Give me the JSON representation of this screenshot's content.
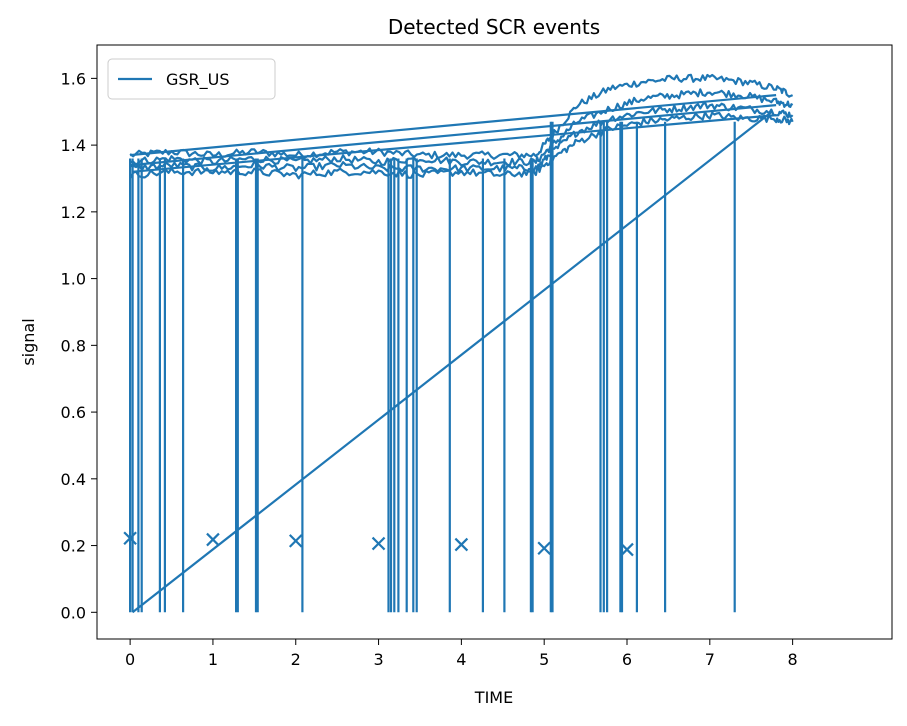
{
  "chart_data": {
    "type": "line",
    "title": "Detected SCR events",
    "xlabel": "TIME",
    "ylabel": "signal",
    "xlim": [
      -0.4,
      9.2
    ],
    "ylim": [
      -0.08,
      1.7
    ],
    "xticks": [
      0,
      1,
      2,
      3,
      4,
      5,
      6,
      7,
      8
    ],
    "yticks": [
      0.0,
      0.2,
      0.4,
      0.6,
      0.8,
      1.0,
      1.2,
      1.4,
      1.6
    ],
    "xtick_labels": [
      "0",
      "1",
      "2",
      "3",
      "4",
      "5",
      "6",
      "7",
      "8"
    ],
    "ytick_labels": [
      "0.0",
      "0.2",
      "0.4",
      "0.6",
      "0.8",
      "1.0",
      "1.2",
      "1.4",
      "1.6"
    ],
    "grid": false,
    "legend_position": "top-left",
    "legend": [
      "GSR_US"
    ],
    "series_color": "#1f77b4",
    "series": [
      {
        "name": "GSR_US",
        "segments": [
          {
            "x": [
              0,
              0.5,
              1,
              1.5,
              2,
              2.5,
              3,
              3.5,
              4,
              4.5,
              4.9,
              5.1,
              5.4,
              5.8,
              6.2,
              6.6,
              7.0,
              7.4,
              7.8,
              8.0
            ],
            "y": [
              1.37,
              1.38,
              1.37,
              1.38,
              1.37,
              1.38,
              1.38,
              1.37,
              1.37,
              1.37,
              1.37,
              1.43,
              1.52,
              1.57,
              1.59,
              1.6,
              1.6,
              1.59,
              1.57,
              1.55
            ]
          },
          {
            "x": [
              0,
              0.5,
              1,
              1.5,
              2,
              2.5,
              3,
              3.5,
              4,
              4.5,
              4.9,
              5.1,
              5.4,
              5.8,
              6.2,
              6.6,
              7.0,
              7.4,
              7.8,
              8.0
            ],
            "y": [
              1.35,
              1.36,
              1.35,
              1.36,
              1.35,
              1.36,
              1.35,
              1.36,
              1.35,
              1.35,
              1.35,
              1.4,
              1.47,
              1.51,
              1.54,
              1.55,
              1.56,
              1.55,
              1.53,
              1.52
            ]
          },
          {
            "x": [
              0,
              0.5,
              1,
              1.5,
              2,
              2.5,
              3,
              3.5,
              4,
              4.5,
              4.9,
              5.1,
              5.4,
              5.8,
              6.2,
              6.6,
              7.0,
              7.4,
              7.8,
              8.0
            ],
            "y": [
              1.33,
              1.34,
              1.33,
              1.34,
              1.33,
              1.34,
              1.33,
              1.33,
              1.33,
              1.33,
              1.33,
              1.38,
              1.44,
              1.48,
              1.5,
              1.51,
              1.52,
              1.51,
              1.5,
              1.49
            ]
          },
          {
            "x": [
              0,
              0.5,
              1,
              1.5,
              2,
              2.5,
              3,
              3.5,
              4,
              4.5,
              4.9,
              5.1,
              5.4,
              5.8,
              6.2,
              6.6,
              7.0,
              7.4,
              7.8,
              8.0
            ],
            "y": [
              1.31,
              1.32,
              1.32,
              1.32,
              1.31,
              1.32,
              1.32,
              1.31,
              1.32,
              1.31,
              1.32,
              1.36,
              1.41,
              1.45,
              1.47,
              1.48,
              1.49,
              1.48,
              1.48,
              1.47
            ]
          },
          {
            "x": [
              0.03,
              7.75
            ],
            "y": [
              0.0,
              1.5
            ]
          },
          {
            "x": [
              7.8,
              0.02
            ],
            "y": [
              1.49,
              1.32
            ]
          },
          {
            "x": [
              7.8,
              0.01
            ],
            "y": [
              1.52,
              1.34
            ]
          },
          {
            "x": [
              7.8,
              0.0
            ],
            "y": [
              1.55,
              1.37
            ]
          }
        ],
        "drops_x": [
          0.0,
          0.03,
          0.1,
          0.14,
          0.36,
          0.42,
          0.64,
          1.28,
          1.3,
          1.52,
          1.54,
          2.08,
          3.12,
          3.15,
          3.19,
          3.24,
          3.34,
          3.42,
          3.46,
          3.86,
          4.26,
          4.52,
          4.84,
          4.86,
          5.08,
          5.1,
          5.68,
          5.72,
          5.76,
          5.92,
          5.94,
          6.12,
          6.46,
          7.3
        ]
      }
    ],
    "events": {
      "marker": "x",
      "x": [
        0.0,
        1.0,
        2.0,
        3.0,
        4.0,
        5.0,
        6.0
      ],
      "y": [
        0.222,
        0.218,
        0.214,
        0.206,
        0.203,
        0.192,
        0.188
      ]
    }
  }
}
